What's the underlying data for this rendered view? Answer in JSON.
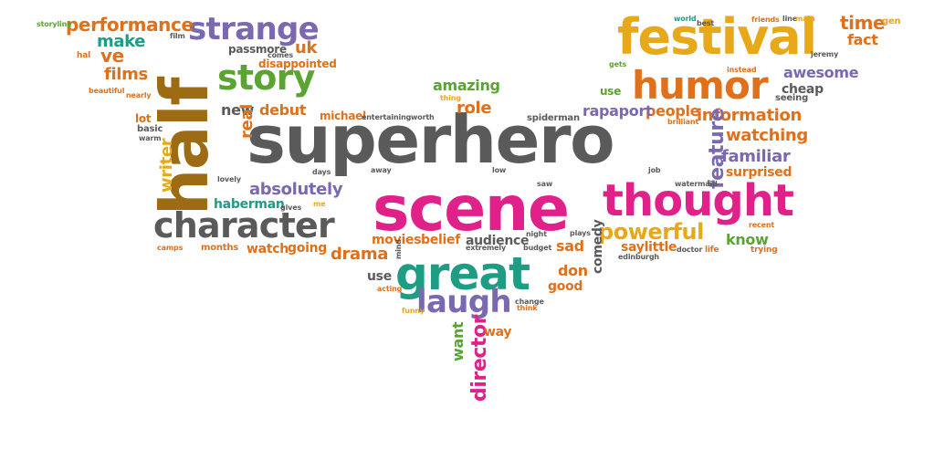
{
  "palette": {
    "gray": "#5a5a5a",
    "magenta": "#e0218a",
    "orange": "#e0701a",
    "gold": "#e7a91a",
    "teal": "#1f9c84",
    "purple": "#7a68b0",
    "green": "#5ba332",
    "brown": "#9c6b14",
    "darkgray": "#6e6e6e"
  },
  "words": [
    {
      "text": "superhero",
      "color": "gray"
    },
    {
      "text": "scene",
      "color": "magenta"
    },
    {
      "text": "half",
      "color": "brown"
    },
    {
      "text": "festival",
      "color": "gold"
    },
    {
      "text": "thought",
      "color": "magenta"
    },
    {
      "text": "humor",
      "color": "orange"
    },
    {
      "text": "great",
      "color": "teal"
    },
    {
      "text": "character",
      "color": "gray"
    },
    {
      "text": "strange",
      "color": "purple"
    },
    {
      "text": "story",
      "color": "green"
    },
    {
      "text": "laugh",
      "color": "purple"
    },
    {
      "text": "performance",
      "color": "orange"
    },
    {
      "text": "powerful",
      "color": "gold"
    },
    {
      "text": "information",
      "color": "orange"
    },
    {
      "text": "watching",
      "color": "orange"
    },
    {
      "text": "familiar",
      "color": "purple"
    },
    {
      "text": "absolutely",
      "color": "purple"
    },
    {
      "text": "feature",
      "color": "purple"
    },
    {
      "text": "time",
      "color": "orange"
    },
    {
      "text": "drama",
      "color": "orange"
    },
    {
      "text": "amazing",
      "color": "green"
    },
    {
      "text": "role",
      "color": "orange"
    },
    {
      "text": "films",
      "color": "orange"
    },
    {
      "text": "make",
      "color": "teal"
    },
    {
      "text": "ve",
      "color": "orange"
    },
    {
      "text": "uk",
      "color": "orange"
    },
    {
      "text": "new",
      "color": "gray"
    },
    {
      "text": "debut",
      "color": "orange"
    },
    {
      "text": "real",
      "color": "orange"
    },
    {
      "text": "writer",
      "color": "gold"
    },
    {
      "text": "awesome",
      "color": "purple"
    },
    {
      "text": "cheap",
      "color": "gray"
    },
    {
      "text": "fact",
      "color": "orange"
    },
    {
      "text": "people",
      "color": "orange"
    },
    {
      "text": "rapaport",
      "color": "purple"
    },
    {
      "text": "haberman",
      "color": "teal"
    },
    {
      "text": "movies",
      "color": "orange"
    },
    {
      "text": "belief",
      "color": "orange"
    },
    {
      "text": "audience",
      "color": "gray"
    },
    {
      "text": "sad",
      "color": "orange"
    },
    {
      "text": "don",
      "color": "orange"
    },
    {
      "text": "good",
      "color": "orange"
    },
    {
      "text": "know",
      "color": "green"
    },
    {
      "text": "surprised",
      "color": "orange"
    },
    {
      "text": "watch",
      "color": "orange"
    },
    {
      "text": "going",
      "color": "orange"
    },
    {
      "text": "director",
      "color": "magenta"
    },
    {
      "text": "want",
      "color": "green"
    },
    {
      "text": "way",
      "color": "orange"
    },
    {
      "text": "use",
      "color": "gray"
    },
    {
      "text": "comedy",
      "color": "gray"
    },
    {
      "text": "saylittle",
      "color": "orange"
    },
    {
      "text": "michael",
      "color": "orange"
    },
    {
      "text": "passmore",
      "color": "gray"
    },
    {
      "text": "disappointed",
      "color": "orange"
    },
    {
      "text": "lot",
      "color": "orange"
    },
    {
      "text": "basic",
      "color": "gray"
    },
    {
      "text": "use",
      "color": "green"
    },
    {
      "text": "months",
      "color": "orange"
    },
    {
      "text": "spiderman",
      "color": "gray"
    },
    {
      "text": "seeing",
      "color": "gray"
    },
    {
      "text": "gen",
      "color": "gold"
    },
    {
      "text": "storyline",
      "color": "green"
    },
    {
      "text": "hal",
      "color": "orange"
    },
    {
      "text": "world",
      "color": "teal"
    },
    {
      "text": "best",
      "color": "gray"
    },
    {
      "text": "friends",
      "color": "orange"
    },
    {
      "text": "line",
      "color": "gray"
    },
    {
      "text": "main",
      "color": "gold"
    },
    {
      "text": "jeremy",
      "color": "gray"
    },
    {
      "text": "instead",
      "color": "orange"
    },
    {
      "text": "brilliant",
      "color": "orange"
    },
    {
      "text": "job",
      "color": "gray"
    },
    {
      "text": "watermaid",
      "color": "gray"
    },
    {
      "text": "recent",
      "color": "orange"
    },
    {
      "text": "trying",
      "color": "orange"
    },
    {
      "text": "life",
      "color": "orange"
    },
    {
      "text": "doctor",
      "color": "gray"
    },
    {
      "text": "edinburgh",
      "color": "gray"
    },
    {
      "text": "camps",
      "color": "orange"
    },
    {
      "text": "lovely",
      "color": "gray"
    },
    {
      "text": "days",
      "color": "gray"
    },
    {
      "text": "gives",
      "color": "gray"
    },
    {
      "text": "me",
      "color": "gold"
    },
    {
      "text": "entertaining",
      "color": "gray"
    },
    {
      "text": "worth",
      "color": "gray"
    },
    {
      "text": "thing",
      "color": "gold"
    },
    {
      "text": "beautiful",
      "color": "orange"
    },
    {
      "text": "nearly",
      "color": "orange"
    },
    {
      "text": "warm",
      "color": "gray"
    },
    {
      "text": "funny",
      "color": "gold"
    },
    {
      "text": "change",
      "color": "gray"
    },
    {
      "text": "think",
      "color": "orange"
    },
    {
      "text": "acting",
      "color": "orange"
    },
    {
      "text": "extremely",
      "color": "gray"
    },
    {
      "text": "budget",
      "color": "gray"
    },
    {
      "text": "night",
      "color": "gray"
    },
    {
      "text": "plays",
      "color": "gray"
    },
    {
      "text": "saw",
      "color": "gray"
    },
    {
      "text": "away",
      "color": "gray"
    },
    {
      "text": "low",
      "color": "gray"
    },
    {
      "text": "film",
      "color": "gray"
    },
    {
      "text": "comes",
      "color": "gray"
    },
    {
      "text": "gets",
      "color": "green"
    },
    {
      "text": "mind",
      "color": "gray"
    }
  ]
}
